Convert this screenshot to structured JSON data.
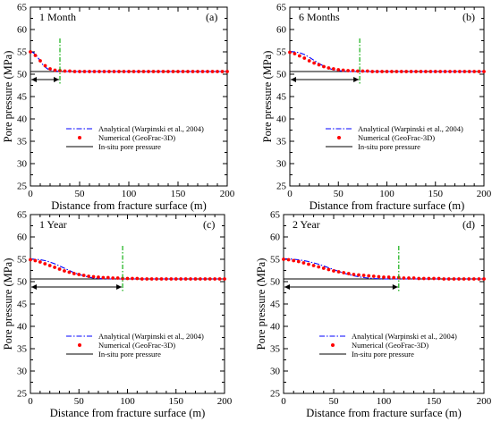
{
  "chart_data": [
    {
      "type": "line",
      "title": "1 Month",
      "panel_label": "(a)",
      "xlabel": "Distance from fracture surface (m)",
      "ylabel": "Pore pressure (MPa)",
      "xlim": [
        0,
        200
      ],
      "ylim": [
        25,
        65
      ],
      "xticks": [
        "0",
        "50",
        "100",
        "150",
        "200"
      ],
      "yticks": [
        "25",
        "30",
        "35",
        "40",
        "45",
        "50",
        "55",
        "60",
        "65"
      ],
      "grid": false,
      "legend": "center-left",
      "front_distance_m": 30,
      "series": [
        {
          "name": "Analytical (Warpinski et al., 2004)",
          "style": "dash-dot",
          "color": "#0000ff",
          "x": [
            0,
            3,
            6,
            9,
            12,
            15,
            18,
            22,
            26,
            30,
            40,
            60,
            100,
            150,
            200
          ],
          "y": [
            55.1,
            54.8,
            54.2,
            53.3,
            52.3,
            51.6,
            51.1,
            50.8,
            50.7,
            50.6,
            50.6,
            50.6,
            50.6,
            50.6,
            50.6
          ]
        },
        {
          "name": "Numerical (GeoFrac-3D)",
          "style": "markers",
          "color": "#ff0000",
          "x": [
            0,
            5,
            10,
            15,
            20,
            25,
            30,
            35,
            40,
            45,
            50,
            55,
            60,
            65,
            70,
            75,
            80,
            85,
            90,
            95,
            100,
            105,
            110,
            115,
            120,
            125,
            130,
            135,
            140,
            145,
            150,
            155,
            160,
            165,
            170,
            175,
            180,
            185,
            190,
            195,
            200
          ],
          "y": [
            55.0,
            54.2,
            53.0,
            51.9,
            51.2,
            50.9,
            50.8,
            50.7,
            50.7,
            50.6,
            50.6,
            50.6,
            50.6,
            50.6,
            50.6,
            50.6,
            50.6,
            50.6,
            50.6,
            50.6,
            50.6,
            50.6,
            50.6,
            50.6,
            50.6,
            50.6,
            50.6,
            50.6,
            50.6,
            50.6,
            50.6,
            50.6,
            50.6,
            50.6,
            50.6,
            50.6,
            50.6,
            50.6,
            50.6,
            50.6,
            50.6
          ]
        },
        {
          "name": "In-situ pore pressure",
          "style": "solid",
          "color": "#000000",
          "x": [
            0,
            200
          ],
          "y": [
            50.6,
            50.6
          ]
        }
      ]
    },
    {
      "type": "line",
      "title": "6 Months",
      "panel_label": "(b)",
      "xlabel": "Distance from fracture surface (m)",
      "ylabel": "Pore pressure (MPa)",
      "xlim": [
        0,
        200
      ],
      "ylim": [
        25,
        65
      ],
      "xticks": [
        "0",
        "50",
        "100",
        "150",
        "200"
      ],
      "yticks": [
        "25",
        "30",
        "35",
        "40",
        "45",
        "50",
        "55",
        "60",
        "65"
      ],
      "grid": false,
      "legend": "center-left",
      "front_distance_m": 72,
      "series": [
        {
          "name": "Analytical (Warpinski et al., 2004)",
          "style": "dash-dot",
          "color": "#0000ff",
          "x": [
            0,
            5,
            10,
            15,
            20,
            25,
            30,
            35,
            40,
            45,
            50,
            55,
            60,
            70,
            80,
            100,
            150,
            200
          ],
          "y": [
            55.1,
            55.0,
            54.8,
            54.4,
            53.8,
            53.1,
            52.4,
            51.8,
            51.3,
            51.0,
            50.8,
            50.7,
            50.6,
            50.6,
            50.6,
            50.6,
            50.6,
            50.6
          ]
        },
        {
          "name": "Numerical (GeoFrac-3D)",
          "style": "markers",
          "color": "#ff0000",
          "x": [
            0,
            5,
            10,
            15,
            20,
            25,
            30,
            35,
            40,
            45,
            50,
            55,
            60,
            65,
            70,
            75,
            80,
            85,
            90,
            95,
            100,
            105,
            110,
            115,
            120,
            125,
            130,
            135,
            140,
            145,
            150,
            155,
            160,
            165,
            170,
            175,
            180,
            185,
            190,
            195,
            200
          ],
          "y": [
            54.9,
            54.6,
            54.1,
            53.6,
            53.0,
            52.5,
            52.1,
            51.7,
            51.4,
            51.2,
            51.0,
            50.9,
            50.8,
            50.8,
            50.7,
            50.7,
            50.7,
            50.6,
            50.6,
            50.6,
            50.6,
            50.6,
            50.6,
            50.6,
            50.6,
            50.6,
            50.6,
            50.6,
            50.6,
            50.6,
            50.6,
            50.6,
            50.6,
            50.6,
            50.6,
            50.6,
            50.6,
            50.6,
            50.6,
            50.6,
            50.6
          ]
        },
        {
          "name": "In-situ pore pressure",
          "style": "solid",
          "color": "#000000",
          "x": [
            0,
            200
          ],
          "y": [
            50.6,
            50.6
          ]
        }
      ]
    },
    {
      "type": "line",
      "title": "1 Year",
      "panel_label": "(c)",
      "xlabel": "Distance from fracture surface (m)",
      "ylabel": "Pore pressure (MPa)",
      "xlim": [
        0,
        200
      ],
      "ylim": [
        25,
        65
      ],
      "xticks": [
        "0",
        "50",
        "100",
        "150",
        "200"
      ],
      "yticks": [
        "25",
        "30",
        "35",
        "40",
        "45",
        "50",
        "55",
        "60",
        "65"
      ],
      "grid": false,
      "legend": "center-left",
      "front_distance_m": 95,
      "series": [
        {
          "name": "Analytical (Warpinski et al., 2004)",
          "style": "dash-dot",
          "color": "#0000ff",
          "x": [
            0,
            5,
            10,
            15,
            20,
            25,
            30,
            35,
            40,
            45,
            50,
            55,
            60,
            65,
            70,
            80,
            90,
            100,
            150,
            200
          ],
          "y": [
            55.1,
            55.0,
            54.9,
            54.7,
            54.4,
            54.0,
            53.5,
            53.0,
            52.5,
            52.0,
            51.6,
            51.3,
            51.0,
            50.8,
            50.7,
            50.6,
            50.6,
            50.6,
            50.6,
            50.6
          ]
        },
        {
          "name": "Numerical (GeoFrac-3D)",
          "style": "markers",
          "color": "#ff0000",
          "x": [
            0,
            5,
            10,
            15,
            20,
            25,
            30,
            35,
            40,
            45,
            50,
            55,
            60,
            65,
            70,
            75,
            80,
            85,
            90,
            95,
            100,
            105,
            110,
            115,
            120,
            125,
            130,
            135,
            140,
            145,
            150,
            155,
            160,
            165,
            170,
            175,
            180,
            185,
            190,
            195,
            200
          ],
          "y": [
            54.9,
            54.7,
            54.4,
            54.0,
            53.6,
            53.2,
            52.8,
            52.4,
            52.1,
            51.8,
            51.6,
            51.4,
            51.2,
            51.1,
            51.0,
            50.9,
            50.9,
            50.8,
            50.8,
            50.7,
            50.7,
            50.7,
            50.7,
            50.6,
            50.6,
            50.6,
            50.6,
            50.6,
            50.6,
            50.6,
            50.6,
            50.6,
            50.6,
            50.6,
            50.6,
            50.6,
            50.6,
            50.6,
            50.6,
            50.6,
            50.6
          ]
        },
        {
          "name": "In-situ pore pressure",
          "style": "solid",
          "color": "#000000",
          "x": [
            0,
            200
          ],
          "y": [
            50.6,
            50.6
          ]
        }
      ]
    },
    {
      "type": "line",
      "title": "2 Year",
      "panel_label": "(d)",
      "xlabel": "Distance from fracture surface (m)",
      "ylabel": "Pore pressure (MPa)",
      "xlim": [
        0,
        200
      ],
      "ylim": [
        25,
        65
      ],
      "xticks": [
        "0",
        "50",
        "100",
        "150",
        "200"
      ],
      "yticks": [
        "25",
        "30",
        "35",
        "40",
        "45",
        "50",
        "55",
        "60",
        "65"
      ],
      "grid": false,
      "legend": "center-left",
      "front_distance_m": 115,
      "series": [
        {
          "name": "Analytical (Warpinski et al., 2004)",
          "style": "dash-dot",
          "color": "#0000ff",
          "x": [
            0,
            5,
            10,
            15,
            20,
            25,
            30,
            35,
            40,
            45,
            50,
            55,
            60,
            65,
            70,
            75,
            80,
            90,
            100,
            110,
            150,
            200
          ],
          "y": [
            55.1,
            55.1,
            55.0,
            54.9,
            54.7,
            54.5,
            54.2,
            53.9,
            53.5,
            53.1,
            52.7,
            52.3,
            51.9,
            51.6,
            51.3,
            51.1,
            50.9,
            50.7,
            50.6,
            50.6,
            50.6,
            50.6
          ]
        },
        {
          "name": "Numerical (GeoFrac-3D)",
          "style": "markers",
          "color": "#ff0000",
          "x": [
            0,
            5,
            10,
            15,
            20,
            25,
            30,
            35,
            40,
            45,
            50,
            55,
            60,
            65,
            70,
            75,
            80,
            85,
            90,
            95,
            100,
            105,
            110,
            115,
            120,
            125,
            130,
            135,
            140,
            145,
            150,
            155,
            160,
            165,
            170,
            175,
            180,
            185,
            190,
            195,
            200
          ],
          "y": [
            55.0,
            54.9,
            54.7,
            54.5,
            54.2,
            53.9,
            53.6,
            53.3,
            53.0,
            52.7,
            52.4,
            52.2,
            52.0,
            51.8,
            51.6,
            51.5,
            51.4,
            51.3,
            51.2,
            51.1,
            51.0,
            51.0,
            50.9,
            50.9,
            50.8,
            50.8,
            50.8,
            50.7,
            50.7,
            50.7,
            50.7,
            50.7,
            50.6,
            50.6,
            50.6,
            50.6,
            50.6,
            50.6,
            50.6,
            50.6,
            50.6
          ]
        },
        {
          "name": "In-situ pore pressure",
          "style": "solid",
          "color": "#000000",
          "x": [
            0,
            200
          ],
          "y": [
            50.6,
            50.6
          ]
        }
      ]
    }
  ]
}
